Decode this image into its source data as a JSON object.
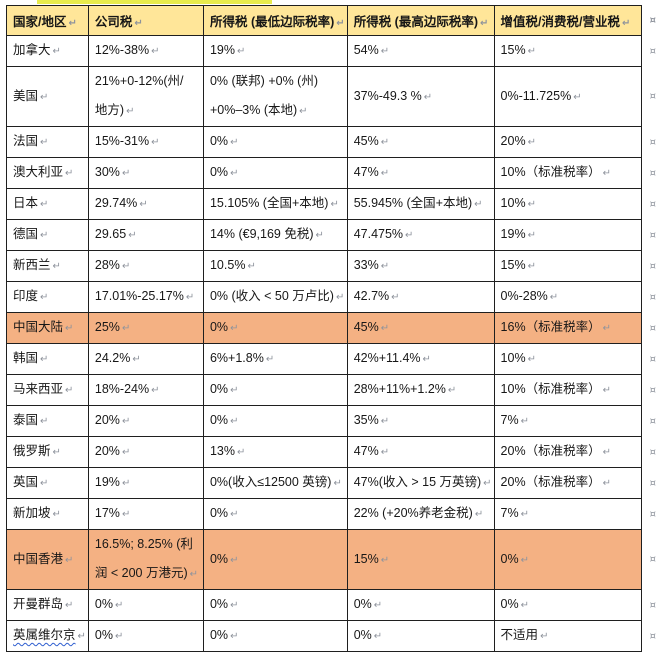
{
  "page": {
    "background": "#ffffff",
    "highlight_strip_color": "#E8EB4D"
  },
  "marks": {
    "cell_end_mark": "↵",
    "row_end_mark": "¤"
  },
  "table": {
    "header_bg": "#FFE699",
    "highlight_row_bg": "#F4B183",
    "border_color": "#1f1f1f",
    "columns": [
      "国家/地区",
      "公司税",
      "所得税 (最低边际税率)",
      "所得税 (最高边际税率)",
      "增值税/消费税/营业税"
    ],
    "rows": [
      {
        "highlight": false,
        "squiggle": false,
        "cells": [
          [
            "加拿大"
          ],
          [
            "12%-38%"
          ],
          [
            "19%"
          ],
          [
            "54%"
          ],
          [
            "15%"
          ]
        ]
      },
      {
        "highlight": false,
        "squiggle": false,
        "cells": [
          [
            "美国"
          ],
          [
            "21%+0-12%(州/",
            "地方)"
          ],
          [
            "0% (联邦) +0% (州)",
            "+0%–3% (本地)"
          ],
          [
            "37%-49.3 %"
          ],
          [
            "0%-11.725%"
          ]
        ]
      },
      {
        "highlight": false,
        "squiggle": false,
        "cells": [
          [
            "法国"
          ],
          [
            "15%-31%"
          ],
          [
            "0%"
          ],
          [
            "45%"
          ],
          [
            "20%"
          ]
        ]
      },
      {
        "highlight": false,
        "squiggle": false,
        "cells": [
          [
            "澳大利亚"
          ],
          [
            "30%"
          ],
          [
            "0%"
          ],
          [
            "47%"
          ],
          [
            "10%（标准税率）"
          ]
        ]
      },
      {
        "highlight": false,
        "squiggle": false,
        "cells": [
          [
            "日本"
          ],
          [
            "29.74%"
          ],
          [
            "15.105% (全国+本地)"
          ],
          [
            "55.945% (全国+本地)"
          ],
          [
            "10%"
          ]
        ]
      },
      {
        "highlight": false,
        "squiggle": false,
        "cells": [
          [
            "德国"
          ],
          [
            "29.65"
          ],
          [
            "14% (€9,169 免税)"
          ],
          [
            "47.475%"
          ],
          [
            "19%"
          ]
        ]
      },
      {
        "highlight": false,
        "squiggle": false,
        "cells": [
          [
            "新西兰"
          ],
          [
            "28%"
          ],
          [
            "10.5%"
          ],
          [
            "33%"
          ],
          [
            "15%"
          ]
        ]
      },
      {
        "highlight": false,
        "squiggle": false,
        "cells": [
          [
            "印度"
          ],
          [
            "17.01%-25.17%"
          ],
          [
            "0% (收入 < 50 万卢比)"
          ],
          [
            "42.7%"
          ],
          [
            "0%-28%"
          ]
        ]
      },
      {
        "highlight": true,
        "squiggle": false,
        "cells": [
          [
            "中国大陆"
          ],
          [
            "25%"
          ],
          [
            "0%"
          ],
          [
            "45%"
          ],
          [
            "16%（标准税率）"
          ]
        ]
      },
      {
        "highlight": false,
        "squiggle": false,
        "cells": [
          [
            "韩国"
          ],
          [
            "24.2%"
          ],
          [
            "6%+1.8%"
          ],
          [
            "42%+11.4%"
          ],
          [
            "10%"
          ]
        ]
      },
      {
        "highlight": false,
        "squiggle": false,
        "cells": [
          [
            "马来西亚"
          ],
          [
            "18%-24%"
          ],
          [
            "0%"
          ],
          [
            "28%+11%+1.2%"
          ],
          [
            "10%（标准税率）"
          ]
        ]
      },
      {
        "highlight": false,
        "squiggle": false,
        "cells": [
          [
            "泰国"
          ],
          [
            "20%"
          ],
          [
            "0%"
          ],
          [
            "35%"
          ],
          [
            "7%"
          ]
        ]
      },
      {
        "highlight": false,
        "squiggle": false,
        "cells": [
          [
            "俄罗斯"
          ],
          [
            "20%"
          ],
          [
            "13%"
          ],
          [
            "47%"
          ],
          [
            "20%（标准税率）"
          ]
        ]
      },
      {
        "highlight": false,
        "squiggle": false,
        "cells": [
          [
            "英国"
          ],
          [
            "19%"
          ],
          [
            "0%(收入≤12500 英镑)"
          ],
          [
            "47%(收入 > 15 万英镑)"
          ],
          [
            "20%（标准税率）"
          ]
        ]
      },
      {
        "highlight": false,
        "squiggle": false,
        "cells": [
          [
            "新加坡"
          ],
          [
            "17%"
          ],
          [
            "0%"
          ],
          [
            "22% (+20%养老金税)"
          ],
          [
            "7%"
          ]
        ]
      },
      {
        "highlight": true,
        "squiggle": false,
        "cells": [
          [
            "中国香港"
          ],
          [
            "16.5%; 8.25% (利",
            "润 < 200 万港元)"
          ],
          [
            "0%"
          ],
          [
            "15%"
          ],
          [
            "0%"
          ]
        ]
      },
      {
        "highlight": false,
        "squiggle": false,
        "cells": [
          [
            "开曼群岛"
          ],
          [
            "0%"
          ],
          [
            "0%"
          ],
          [
            "0%"
          ],
          [
            "0%"
          ]
        ]
      },
      {
        "highlight": false,
        "squiggle": true,
        "cells": [
          [
            "英属维尔京"
          ],
          [
            "0%"
          ],
          [
            "0%"
          ],
          [
            "0%"
          ],
          [
            "不适用"
          ]
        ]
      }
    ]
  }
}
